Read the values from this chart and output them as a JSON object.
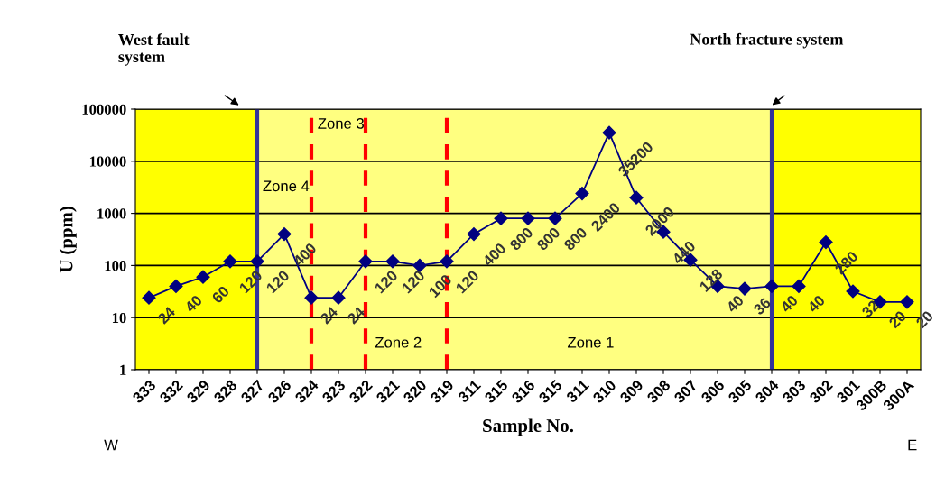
{
  "chart_data": {
    "type": "line",
    "xlabel": "Sample No.",
    "ylabel": "U (ppm)",
    "categories": [
      "333",
      "332",
      "329",
      "328",
      "327",
      "326",
      "324",
      "323",
      "322",
      "321",
      "320",
      "319",
      "311",
      "315",
      "316",
      "315",
      "311",
      "310",
      "309",
      "308",
      "307",
      "306",
      "305",
      "304",
      "303",
      "302",
      "301",
      "300B",
      "300A"
    ],
    "series": [
      {
        "color": "#000080",
        "values": [
          24,
          40,
          60,
          120,
          120,
          400,
          24,
          24,
          120,
          120,
          100,
          120,
          400,
          800,
          800,
          800,
          2400,
          35200,
          2000,
          440,
          128,
          40,
          36,
          40,
          40,
          280,
          32,
          20,
          20
        ],
        "value_labels": [
          "24",
          "40",
          "60",
          "120",
          "120",
          "400",
          "24",
          "24",
          "120",
          "120",
          "100",
          "120",
          "400",
          "800",
          "800",
          "800",
          "2400",
          "35200",
          "2000",
          "440",
          "128",
          "40",
          "36",
          "40",
          "40",
          "280",
          "32",
          "20",
          "20"
        ]
      }
    ],
    "log": true,
    "ylim": [
      1,
      100000
    ],
    "yticks": [
      1,
      10,
      100,
      1000,
      10000,
      100000
    ],
    "grid": "y",
    "marker": "diamond",
    "line_style": "solid",
    "bands": [
      {
        "axis": "x",
        "from": "327",
        "to": "304",
        "color": "#ffff80"
      }
    ],
    "ref_lines": [
      {
        "axis": "x",
        "value": "327",
        "color": "#333399",
        "line_style": "solid"
      },
      {
        "axis": "x",
        "value": "324",
        "color": "#ff0000",
        "line_style": "dashed"
      },
      {
        "axis": "x",
        "value": "322",
        "color": "#ff0000",
        "line_style": "dashed"
      },
      {
        "axis": "x",
        "value": "319",
        "color": "#ff0000",
        "line_style": "dashed"
      },
      {
        "axis": "x",
        "value": "304",
        "color": "#333399",
        "line_style": "solid"
      }
    ],
    "annotations": [
      "Zone 4",
      "Zone 3",
      "Zone 2",
      "Zone 1",
      "West fault\nsystem",
      "North fracture system",
      "W",
      "E"
    ]
  }
}
